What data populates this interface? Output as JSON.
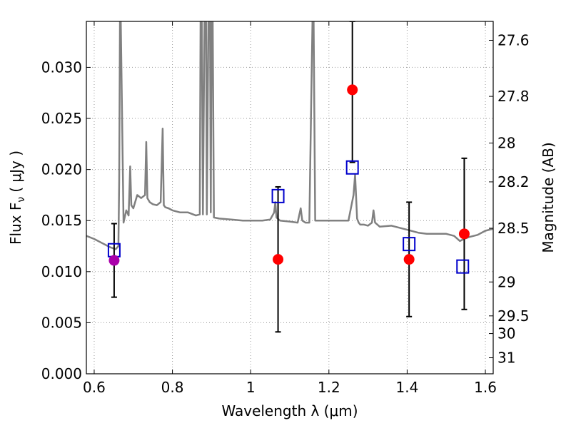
{
  "chart_data": {
    "type": "scatter",
    "xlabel": "Wavelength  λ (μm)",
    "ylabel_main": "Flux  F",
    "ylabel_sub": "ν",
    "ylabel_units": "( μJy )",
    "ylabel_right": "Magnitude (AB)",
    "xlim": [
      0.58,
      1.62
    ],
    "ylim": [
      0,
      0.0345
    ],
    "grid": true,
    "x_ticks": [
      {
        "value": 0.6,
        "label": "0.6"
      },
      {
        "value": 0.8,
        "label": "0.8"
      },
      {
        "value": 1.0,
        "label": "1"
      },
      {
        "value": 1.2,
        "label": "1.2"
      },
      {
        "value": 1.4,
        "label": "1.4"
      },
      {
        "value": 1.6,
        "label": "1.6"
      }
    ],
    "y_ticks": [
      {
        "value": 0.0,
        "label": "0.000"
      },
      {
        "value": 0.005,
        "label": "0.005"
      },
      {
        "value": 0.01,
        "label": "0.010"
      },
      {
        "value": 0.015,
        "label": "0.015"
      },
      {
        "value": 0.02,
        "label": "0.020"
      },
      {
        "value": 0.025,
        "label": "0.025"
      },
      {
        "value": 0.03,
        "label": "0.030"
      }
    ],
    "right_ticks": [
      {
        "flux": 0.03265,
        "label": "27.6"
      },
      {
        "flux": 0.02716,
        "label": "27.8"
      },
      {
        "flux": 0.02259,
        "label": "28"
      },
      {
        "flux": 0.01879,
        "label": "28.2"
      },
      {
        "flux": 0.01425,
        "label": "28.5"
      },
      {
        "flux": 0.00899,
        "label": "29"
      },
      {
        "flux": 0.00567,
        "label": "29.5"
      },
      {
        "flux": 0.00394,
        "label": "30"
      },
      {
        "flux": 0.00157,
        "label": "31"
      }
    ],
    "colors": {
      "model": "#808080",
      "model_points": "#0000cc",
      "observed": "#ff0000",
      "observed_highlight": "#aa00aa",
      "errorbar": "#000000",
      "grid": "#999999"
    },
    "model_spectrum": {
      "x": [
        0.58,
        0.6,
        0.62,
        0.64,
        0.655,
        0.662,
        0.664,
        0.666,
        0.668,
        0.675,
        0.682,
        0.688,
        0.692,
        0.695,
        0.7,
        0.71,
        0.72,
        0.73,
        0.733,
        0.736,
        0.742,
        0.75,
        0.76,
        0.77,
        0.775,
        0.778,
        0.782,
        0.79,
        0.8,
        0.82,
        0.84,
        0.86,
        0.87,
        0.872,
        0.875,
        0.878,
        0.882,
        0.886,
        0.888,
        0.892,
        0.896,
        0.898,
        0.9,
        0.903,
        0.906,
        0.92,
        0.95,
        0.98,
        1.0,
        1.03,
        1.05,
        1.06,
        1.063,
        1.066,
        1.075,
        1.1,
        1.12,
        1.128,
        1.132,
        1.14,
        1.15,
        1.158,
        1.161,
        1.165,
        1.2,
        1.25,
        1.263,
        1.267,
        1.272,
        1.276,
        1.28,
        1.29,
        1.3,
        1.31,
        1.314,
        1.318,
        1.33,
        1.36,
        1.4,
        1.43,
        1.45,
        1.5,
        1.52,
        1.535,
        1.545,
        1.56,
        1.58,
        1.6,
        1.62
      ],
      "y": [
        0.0135,
        0.0132,
        0.0128,
        0.0124,
        0.0122,
        0.0125,
        0.019,
        0.0345,
        0.0345,
        0.0148,
        0.016,
        0.0155,
        0.0203,
        0.0165,
        0.0162,
        0.0175,
        0.0172,
        0.0175,
        0.0227,
        0.0172,
        0.0168,
        0.0166,
        0.0165,
        0.0168,
        0.024,
        0.0165,
        0.0163,
        0.0162,
        0.016,
        0.0158,
        0.0158,
        0.0155,
        0.0156,
        0.0345,
        0.0345,
        0.0156,
        0.0345,
        0.0345,
        0.0156,
        0.0345,
        0.0345,
        0.0158,
        0.0345,
        0.0345,
        0.0153,
        0.0152,
        0.0151,
        0.015,
        0.015,
        0.015,
        0.0151,
        0.0158,
        0.0168,
        0.0153,
        0.015,
        0.0149,
        0.0148,
        0.0162,
        0.015,
        0.0148,
        0.0148,
        0.0345,
        0.0345,
        0.015,
        0.015,
        0.015,
        0.0175,
        0.0195,
        0.0152,
        0.0148,
        0.0146,
        0.0146,
        0.0145,
        0.0148,
        0.016,
        0.0148,
        0.0144,
        0.0145,
        0.0141,
        0.0138,
        0.0137,
        0.0137,
        0.0135,
        0.013,
        0.0132,
        0.0134,
        0.0136,
        0.014,
        0.0142
      ]
    },
    "model_points": [
      {
        "x": 0.651,
        "y": 0.0121
      },
      {
        "x": 1.07,
        "y": 0.0174
      },
      {
        "x": 1.26,
        "y": 0.0202
      },
      {
        "x": 1.405,
        "y": 0.0127
      },
      {
        "x": 1.542,
        "y": 0.0105
      }
    ],
    "observed": [
      {
        "x": 0.651,
        "y": 0.0111,
        "yerr_low": 0.0075,
        "yerr_high": 0.0147,
        "highlight": true
      },
      {
        "x": 1.07,
        "y": 0.0112,
        "yerr_low": 0.0041,
        "yerr_high": 0.0183,
        "highlight": false
      },
      {
        "x": 1.26,
        "y": 0.0278,
        "yerr_low": 0.0207,
        "yerr_high": 0.0345,
        "highlight": false
      },
      {
        "x": 1.405,
        "y": 0.0112,
        "yerr_low": 0.0056,
        "yerr_high": 0.0168,
        "highlight": false
      },
      {
        "x": 1.546,
        "y": 0.0137,
        "yerr_low": 0.0063,
        "yerr_high": 0.0211,
        "highlight": false
      }
    ]
  }
}
